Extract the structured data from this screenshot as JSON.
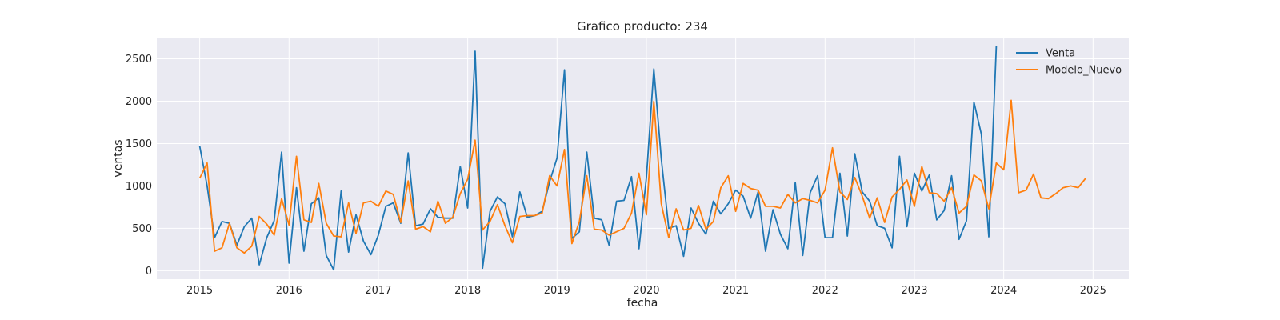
{
  "chart_data": {
    "type": "line",
    "title": "Grafico producto: 234",
    "xlabel": "fecha",
    "ylabel": "ventas",
    "xlim": [
      2014.52,
      2025.4
    ],
    "ylim": [
      -100,
      2750
    ],
    "xticks": [
      2015,
      2016,
      2017,
      2018,
      2019,
      2020,
      2021,
      2022,
      2023,
      2024,
      2025
    ],
    "xtick_labels": [
      "2015",
      "2016",
      "2017",
      "2018",
      "2019",
      "2020",
      "2021",
      "2022",
      "2023",
      "2024",
      "2025"
    ],
    "yticks": [
      0,
      500,
      1000,
      1500,
      2000,
      2500
    ],
    "ytick_labels": [
      "0",
      "500",
      "1000",
      "1500",
      "2000",
      "2500"
    ],
    "grid": true,
    "background": "#eaeaf2",
    "legend": {
      "position": "upper right"
    },
    "series": [
      {
        "name": "Venta",
        "color": "#1f77b4",
        "start": "2015-01",
        "freq": "monthly",
        "values": [
          1470,
          1000,
          390,
          580,
          560,
          300,
          520,
          620,
          70,
          390,
          590,
          1400,
          90,
          980,
          230,
          790,
          860,
          180,
          10,
          940,
          220,
          660,
          350,
          190,
          420,
          760,
          800,
          560,
          1390,
          530,
          550,
          730,
          630,
          620,
          620,
          1230,
          740,
          2590,
          30,
          700,
          870,
          790,
          400,
          930,
          630,
          650,
          700,
          1050,
          1330,
          2370,
          380,
          460,
          1400,
          620,
          600,
          300,
          820,
          830,
          1110,
          260,
          1100,
          2380,
          1320,
          500,
          530,
          170,
          740,
          560,
          430,
          820,
          670,
          790,
          950,
          880,
          620,
          930,
          230,
          720,
          430,
          260,
          1040,
          180,
          920,
          1120,
          390,
          390,
          1150,
          410,
          1380,
          930,
          820,
          530,
          500,
          270,
          1350,
          520,
          1150,
          940,
          1130,
          600,
          710,
          1120,
          370,
          590,
          1990,
          1610,
          400,
          2650
        ]
      },
      {
        "name": "Modelo_Nuevo",
        "color": "#ff7f0e",
        "start": "2015-01",
        "freq": "monthly",
        "values": [
          1090,
          1270,
          230,
          270,
          560,
          270,
          210,
          290,
          640,
          550,
          420,
          850,
          540,
          1350,
          600,
          570,
          1030,
          560,
          410,
          400,
          800,
          440,
          800,
          820,
          760,
          940,
          900,
          570,
          1060,
          490,
          520,
          460,
          820,
          560,
          630,
          910,
          1080,
          1540,
          480,
          580,
          780,
          530,
          330,
          640,
          650,
          650,
          680,
          1120,
          1000,
          1430,
          320,
          580,
          1120,
          490,
          480,
          420,
          460,
          500,
          680,
          1150,
          660,
          2000,
          790,
          390,
          730,
          480,
          500,
          770,
          490,
          580,
          980,
          1120,
          700,
          1030,
          970,
          950,
          760,
          760,
          740,
          900,
          800,
          850,
          830,
          800,
          950,
          1450,
          930,
          840,
          1100,
          880,
          620,
          860,
          570,
          870,
          960,
          1070,
          760,
          1230,
          920,
          910,
          820,
          980,
          680,
          760,
          1130,
          1060,
          730,
          1270,
          1190,
          2010,
          920,
          950,
          1140,
          860,
          850,
          910,
          980,
          1000,
          980,
          1090
        ]
      }
    ]
  }
}
